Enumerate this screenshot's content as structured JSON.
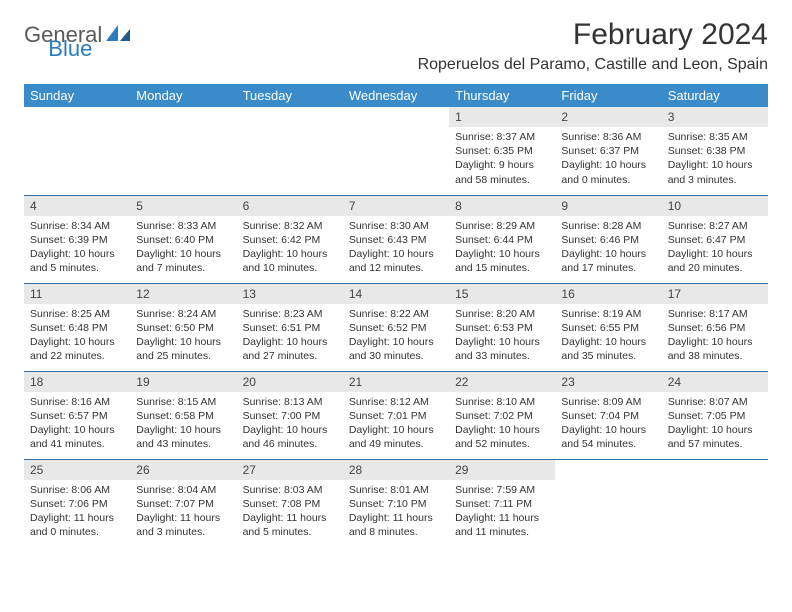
{
  "logo": {
    "text1": "General",
    "text2": "Blue"
  },
  "title": "February 2024",
  "subtitle": "Roperuelos del Paramo, Castille and Leon, Spain",
  "colors": {
    "header_bg": "#3a8bc9",
    "header_text": "#ffffff",
    "daynum_bg": "#e8e8e8",
    "border": "#2f6da0",
    "logo_blue": "#2b7bbf",
    "text": "#333333",
    "background": "#ffffff"
  },
  "day_headers": [
    "Sunday",
    "Monday",
    "Tuesday",
    "Wednesday",
    "Thursday",
    "Friday",
    "Saturday"
  ],
  "weeks": [
    [
      {
        "n": "",
        "sr": "",
        "ss": "",
        "dl": ""
      },
      {
        "n": "",
        "sr": "",
        "ss": "",
        "dl": ""
      },
      {
        "n": "",
        "sr": "",
        "ss": "",
        "dl": ""
      },
      {
        "n": "",
        "sr": "",
        "ss": "",
        "dl": ""
      },
      {
        "n": "1",
        "sr": "Sunrise: 8:37 AM",
        "ss": "Sunset: 6:35 PM",
        "dl": "Daylight: 9 hours and 58 minutes."
      },
      {
        "n": "2",
        "sr": "Sunrise: 8:36 AM",
        "ss": "Sunset: 6:37 PM",
        "dl": "Daylight: 10 hours and 0 minutes."
      },
      {
        "n": "3",
        "sr": "Sunrise: 8:35 AM",
        "ss": "Sunset: 6:38 PM",
        "dl": "Daylight: 10 hours and 3 minutes."
      }
    ],
    [
      {
        "n": "4",
        "sr": "Sunrise: 8:34 AM",
        "ss": "Sunset: 6:39 PM",
        "dl": "Daylight: 10 hours and 5 minutes."
      },
      {
        "n": "5",
        "sr": "Sunrise: 8:33 AM",
        "ss": "Sunset: 6:40 PM",
        "dl": "Daylight: 10 hours and 7 minutes."
      },
      {
        "n": "6",
        "sr": "Sunrise: 8:32 AM",
        "ss": "Sunset: 6:42 PM",
        "dl": "Daylight: 10 hours and 10 minutes."
      },
      {
        "n": "7",
        "sr": "Sunrise: 8:30 AM",
        "ss": "Sunset: 6:43 PM",
        "dl": "Daylight: 10 hours and 12 minutes."
      },
      {
        "n": "8",
        "sr": "Sunrise: 8:29 AM",
        "ss": "Sunset: 6:44 PM",
        "dl": "Daylight: 10 hours and 15 minutes."
      },
      {
        "n": "9",
        "sr": "Sunrise: 8:28 AM",
        "ss": "Sunset: 6:46 PM",
        "dl": "Daylight: 10 hours and 17 minutes."
      },
      {
        "n": "10",
        "sr": "Sunrise: 8:27 AM",
        "ss": "Sunset: 6:47 PM",
        "dl": "Daylight: 10 hours and 20 minutes."
      }
    ],
    [
      {
        "n": "11",
        "sr": "Sunrise: 8:25 AM",
        "ss": "Sunset: 6:48 PM",
        "dl": "Daylight: 10 hours and 22 minutes."
      },
      {
        "n": "12",
        "sr": "Sunrise: 8:24 AM",
        "ss": "Sunset: 6:50 PM",
        "dl": "Daylight: 10 hours and 25 minutes."
      },
      {
        "n": "13",
        "sr": "Sunrise: 8:23 AM",
        "ss": "Sunset: 6:51 PM",
        "dl": "Daylight: 10 hours and 27 minutes."
      },
      {
        "n": "14",
        "sr": "Sunrise: 8:22 AM",
        "ss": "Sunset: 6:52 PM",
        "dl": "Daylight: 10 hours and 30 minutes."
      },
      {
        "n": "15",
        "sr": "Sunrise: 8:20 AM",
        "ss": "Sunset: 6:53 PM",
        "dl": "Daylight: 10 hours and 33 minutes."
      },
      {
        "n": "16",
        "sr": "Sunrise: 8:19 AM",
        "ss": "Sunset: 6:55 PM",
        "dl": "Daylight: 10 hours and 35 minutes."
      },
      {
        "n": "17",
        "sr": "Sunrise: 8:17 AM",
        "ss": "Sunset: 6:56 PM",
        "dl": "Daylight: 10 hours and 38 minutes."
      }
    ],
    [
      {
        "n": "18",
        "sr": "Sunrise: 8:16 AM",
        "ss": "Sunset: 6:57 PM",
        "dl": "Daylight: 10 hours and 41 minutes."
      },
      {
        "n": "19",
        "sr": "Sunrise: 8:15 AM",
        "ss": "Sunset: 6:58 PM",
        "dl": "Daylight: 10 hours and 43 minutes."
      },
      {
        "n": "20",
        "sr": "Sunrise: 8:13 AM",
        "ss": "Sunset: 7:00 PM",
        "dl": "Daylight: 10 hours and 46 minutes."
      },
      {
        "n": "21",
        "sr": "Sunrise: 8:12 AM",
        "ss": "Sunset: 7:01 PM",
        "dl": "Daylight: 10 hours and 49 minutes."
      },
      {
        "n": "22",
        "sr": "Sunrise: 8:10 AM",
        "ss": "Sunset: 7:02 PM",
        "dl": "Daylight: 10 hours and 52 minutes."
      },
      {
        "n": "23",
        "sr": "Sunrise: 8:09 AM",
        "ss": "Sunset: 7:04 PM",
        "dl": "Daylight: 10 hours and 54 minutes."
      },
      {
        "n": "24",
        "sr": "Sunrise: 8:07 AM",
        "ss": "Sunset: 7:05 PM",
        "dl": "Daylight: 10 hours and 57 minutes."
      }
    ],
    [
      {
        "n": "25",
        "sr": "Sunrise: 8:06 AM",
        "ss": "Sunset: 7:06 PM",
        "dl": "Daylight: 11 hours and 0 minutes."
      },
      {
        "n": "26",
        "sr": "Sunrise: 8:04 AM",
        "ss": "Sunset: 7:07 PM",
        "dl": "Daylight: 11 hours and 3 minutes."
      },
      {
        "n": "27",
        "sr": "Sunrise: 8:03 AM",
        "ss": "Sunset: 7:08 PM",
        "dl": "Daylight: 11 hours and 5 minutes."
      },
      {
        "n": "28",
        "sr": "Sunrise: 8:01 AM",
        "ss": "Sunset: 7:10 PM",
        "dl": "Daylight: 11 hours and 8 minutes."
      },
      {
        "n": "29",
        "sr": "Sunrise: 7:59 AM",
        "ss": "Sunset: 7:11 PM",
        "dl": "Daylight: 11 hours and 11 minutes."
      },
      {
        "n": "",
        "sr": "",
        "ss": "",
        "dl": ""
      },
      {
        "n": "",
        "sr": "",
        "ss": "",
        "dl": ""
      }
    ]
  ]
}
